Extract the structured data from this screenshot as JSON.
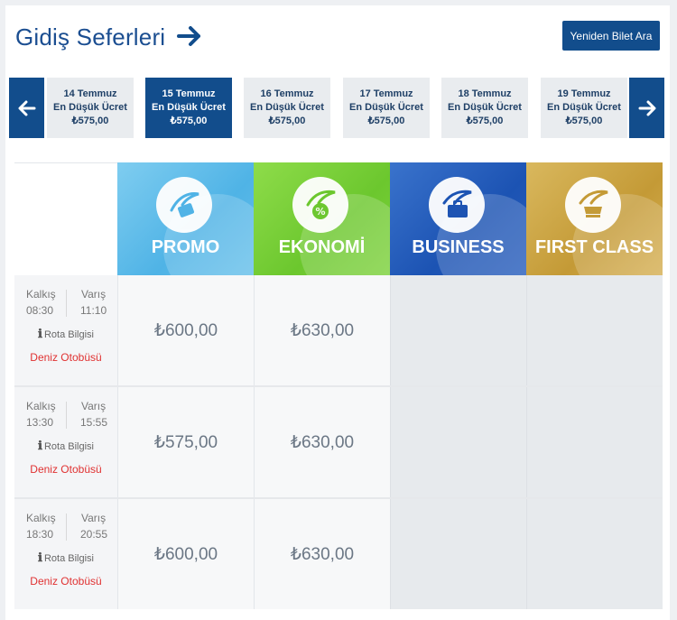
{
  "header": {
    "title": "Gidiş Seferleri",
    "search_again": "Yeniden Bilet Ara"
  },
  "dates": [
    {
      "day": "14 Temmuz",
      "label": "En Düşük Ücret",
      "price": "₺575,00",
      "active": false
    },
    {
      "day": "15 Temmuz",
      "label": "En Düşük Ücret",
      "price": "₺575,00",
      "active": true
    },
    {
      "day": "16 Temmuz",
      "label": "En Düşük Ücret",
      "price": "₺575,00",
      "active": false
    },
    {
      "day": "17 Temmuz",
      "label": "En Düşük Ücret",
      "price": "₺575,00",
      "active": false
    },
    {
      "day": "18 Temmuz",
      "label": "En Düşük Ücret",
      "price": "₺575,00",
      "active": false
    },
    {
      "day": "19 Temmuz",
      "label": "En Düşük Ücret",
      "price": "₺575,00",
      "active": false
    }
  ],
  "classes": [
    {
      "name": "PROMO",
      "icon": "promo-ticket-icon"
    },
    {
      "name": "EKONOMİ",
      "icon": "discount-badge-icon"
    },
    {
      "name": "BUSINESS",
      "icon": "briefcase-icon"
    },
    {
      "name": "FIRST CLASS",
      "icon": "first-class-seat-icon"
    }
  ],
  "trips": [
    {
      "departure_label": "Kalkış",
      "departure": "08:30",
      "arrival_label": "Varış",
      "arrival": "11:10",
      "route": "Rota Bilgisi",
      "vessel": "Deniz Otobüsü",
      "promo": "₺600,00",
      "ekonomi": "₺630,00"
    },
    {
      "departure_label": "Kalkış",
      "departure": "13:30",
      "arrival_label": "Varış",
      "arrival": "15:55",
      "route": "Rota Bilgisi",
      "vessel": "Deniz Otobüsü",
      "promo": "₺575,00",
      "ekonomi": "₺630,00"
    },
    {
      "departure_label": "Kalkış",
      "departure": "18:30",
      "arrival_label": "Varış",
      "arrival": "20:55",
      "route": "Rota Bilgisi",
      "vessel": "Deniz Otobüsü",
      "promo": "₺600,00",
      "ekonomi": "₺630,00"
    }
  ],
  "colors": {
    "primary": "#124d8c",
    "title": "#1b4e91",
    "vessel_text": "#e03131",
    "promo": "#4fb3e6",
    "ekonomi": "#6cc72e",
    "business": "#1c53b3",
    "first_class": "#c49a36"
  }
}
